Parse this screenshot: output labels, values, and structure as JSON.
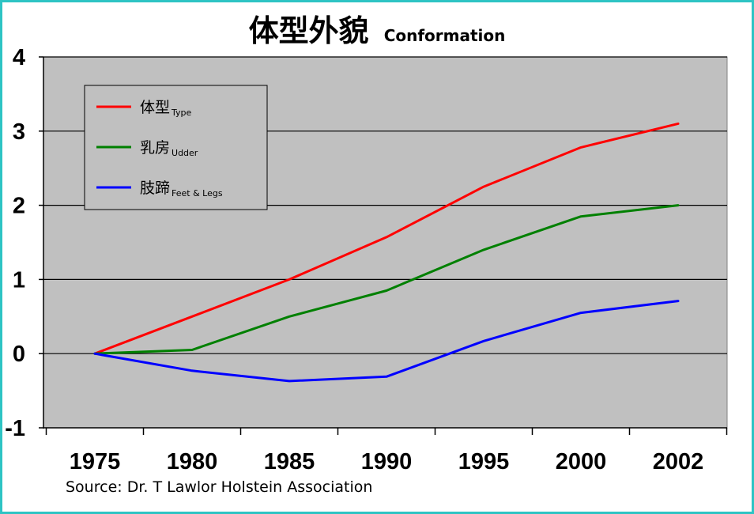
{
  "title": {
    "main": "体型外貌",
    "sub": "Conformation"
  },
  "source": "Source: Dr. T Lawlor Holstein Association",
  "chart_data": {
    "type": "line",
    "categories": [
      "1975",
      "1980",
      "1985",
      "1990",
      "1995",
      "2000",
      "2002"
    ],
    "ylim": [
      -1,
      4
    ],
    "yticks": [
      -1,
      0,
      1,
      2,
      3,
      4
    ],
    "grid": true,
    "legend_position": "top-left",
    "series": [
      {
        "name": "体型",
        "name_sub": "Type",
        "color": "#ff0000",
        "values": [
          0,
          0.5,
          1.0,
          1.57,
          2.25,
          2.78,
          3.1
        ]
      },
      {
        "name": "乳房",
        "name_sub": "Udder",
        "color": "#008000",
        "values": [
          0,
          0.05,
          0.5,
          0.85,
          1.4,
          1.85,
          2.0
        ]
      },
      {
        "name": "肢蹄",
        "name_sub": "Feet & Legs",
        "color": "#0000ff",
        "values": [
          0,
          -0.23,
          -0.37,
          -0.31,
          0.17,
          0.55,
          0.71
        ]
      }
    ],
    "colors": {
      "plot_background": "#c0c0c0",
      "frame_border": "#2ec4c4",
      "gridline": "#000000"
    }
  }
}
